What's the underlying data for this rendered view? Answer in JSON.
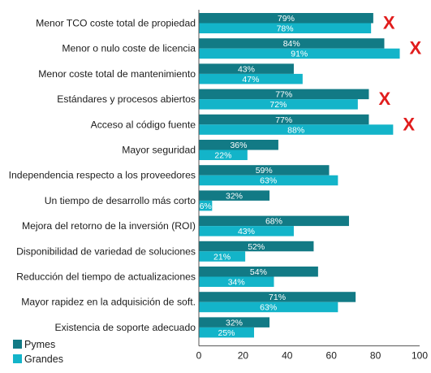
{
  "chart_data": {
    "type": "bar",
    "orientation": "horizontal",
    "categories": [
      "Menor TCO coste total de propiedad",
      "Menor o nulo coste de licencia",
      "Menor coste total de mantenimiento",
      "Estándares y procesos abiertos",
      "Acceso al código fuente",
      "Mayor seguridad",
      "Independencia respecto a los proveedores",
      "Un tiempo de desarrollo más corto",
      "Mejora del retorno de la inversión (ROI)",
      "Disponibilidad de variedad de soluciones",
      "Reducción del tiempo de actualizaciones",
      "Mayor rapidez en la adquisición de soft.",
      "Existencia de soporte adecuado"
    ],
    "series": [
      {
        "name": "Pymes",
        "color": "#127a85",
        "values": [
          79,
          84,
          43,
          77,
          77,
          36,
          59,
          32,
          68,
          52,
          54,
          71,
          32
        ],
        "labels": [
          "79%",
          "84%",
          "43%",
          "77%",
          "77%",
          "36%",
          "59%",
          "32%",
          "68%",
          "52%",
          "54%",
          "71%",
          "32%"
        ]
      },
      {
        "name": "Grandes",
        "color": "#13b4c9",
        "values": [
          78,
          91,
          47,
          72,
          88,
          22,
          63,
          6,
          43,
          21,
          34,
          63,
          25
        ],
        "labels": [
          "78%",
          "91%",
          "47%",
          "72%",
          "88%",
          "22%",
          "63%",
          "6%",
          "43%",
          "21%",
          "34%",
          "63%",
          "25%"
        ]
      }
    ],
    "xlim": [
      0,
      100
    ],
    "xticks": [
      "0",
      "20",
      "40",
      "60",
      "80",
      "100"
    ],
    "xtick_values": [
      0,
      20,
      40,
      60,
      80,
      100
    ],
    "legend_position": "bottom-left",
    "annotations": {
      "symbol": "X",
      "color": "#e11d1d",
      "rows": [
        0,
        1,
        3,
        4
      ]
    }
  }
}
